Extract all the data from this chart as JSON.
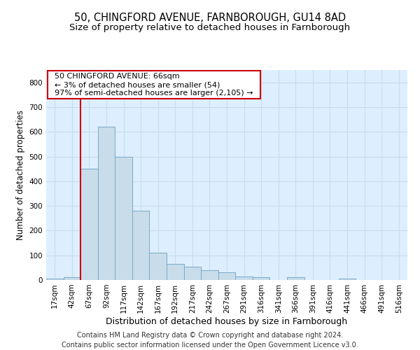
{
  "title_line1": "50, CHINGFORD AVENUE, FARNBOROUGH, GU14 8AD",
  "title_line2": "Size of property relative to detached houses in Farnborough",
  "xlabel": "Distribution of detached houses by size in Farnborough",
  "ylabel": "Number of detached properties",
  "bar_color": "#c8dcea",
  "bar_edge_color": "#7aaac8",
  "vline_color": "#cc0000",
  "vline_x_idx": 2,
  "categories": [
    "17sqm",
    "42sqm",
    "67sqm",
    "92sqm",
    "117sqm",
    "142sqm",
    "167sqm",
    "192sqm",
    "217sqm",
    "242sqm",
    "267sqm",
    "291sqm",
    "316sqm",
    "341sqm",
    "366sqm",
    "391sqm",
    "416sqm",
    "441sqm",
    "466sqm",
    "491sqm",
    "516sqm"
  ],
  "values": [
    5,
    10,
    450,
    620,
    500,
    280,
    110,
    65,
    55,
    40,
    30,
    15,
    10,
    0,
    10,
    0,
    0,
    5,
    0,
    0,
    0
  ],
  "ylim": [
    0,
    850
  ],
  "yticks": [
    0,
    100,
    200,
    300,
    400,
    500,
    600,
    700,
    800
  ],
  "annotation_line1": "  50 CHINGFORD AVENUE: 66sqm  ",
  "annotation_line2": "  ← 3% of detached houses are smaller (54)  ",
  "annotation_line3": "  97% of semi-detached houses are larger (2,105) →  ",
  "annotation_box_color": "#ffffff",
  "annotation_box_edge_color": "#cc0000",
  "grid_color": "#c8dcea",
  "bg_color": "#ddeeff",
  "footer_line1": "Contains HM Land Registry data © Crown copyright and database right 2024.",
  "footer_line2": "Contains public sector information licensed under the Open Government Licence v3.0.",
  "title_fontsize": 10.5,
  "subtitle_fontsize": 9.5,
  "ylabel_fontsize": 8.5,
  "xlabel_fontsize": 9,
  "tick_fontsize": 7.5,
  "ann_fontsize": 8,
  "footer_fontsize": 7
}
